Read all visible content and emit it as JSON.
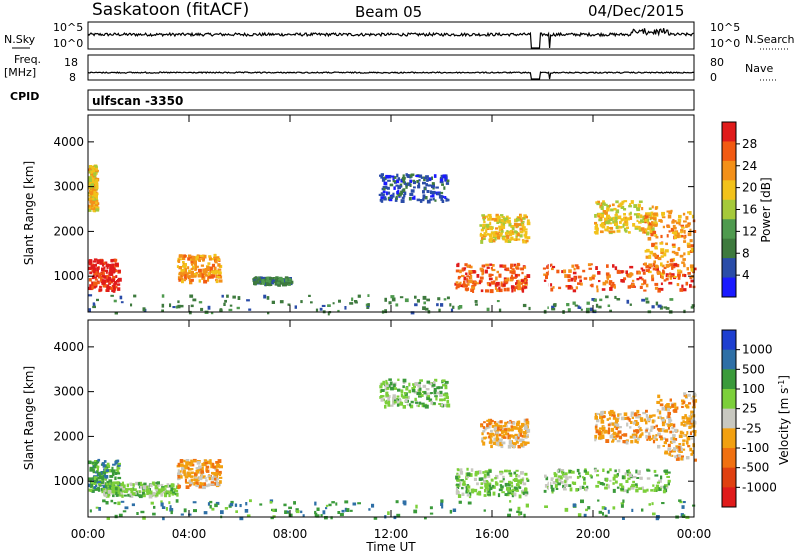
{
  "header": {
    "radar": "Saskatoon (fitACF)",
    "beam": "Beam 05",
    "date": "04/Dec/2015"
  },
  "strip_panels": {
    "noise": {
      "left_label": "N.Sky",
      "right_label": "N.Search",
      "left_ticks": [
        "10^5",
        "10^0"
      ],
      "right_ticks": [
        "10^5",
        "10^0"
      ]
    },
    "freq": {
      "left_label_1": "Freq.",
      "left_label_2": "[MHz]",
      "right_label": "Nave",
      "left_ticks": [
        "18",
        "8"
      ],
      "right_ticks": [
        "80",
        "0"
      ]
    },
    "cpid": {
      "label": "CPID",
      "value": "ulfscan -3350"
    }
  },
  "x_axis": {
    "title": "Time UT",
    "ticks": [
      "00:00",
      "04:00",
      "08:00",
      "12:00",
      "16:00",
      "20:00",
      "00:00"
    ]
  },
  "colors": {
    "power": [
      "#1a1aff",
      "#2a4ca8",
      "#3e7a3e",
      "#4f9a4f",
      "#a5c93a",
      "#f2c21b",
      "#f39019",
      "#f25a12",
      "#e01b1b"
    ],
    "velocity": [
      "#1e3fd0",
      "#2e6fa6",
      "#3a9a3a",
      "#7ccf3a",
      "#c8c8c0",
      "#f2a010",
      "#f07010",
      "#e04010",
      "#e01b1b"
    ]
  },
  "chart_data": [
    {
      "type": "heatmap",
      "name": "power",
      "ylabel": "Slant Range [km]",
      "yticks": [
        "1000",
        "2000",
        "3000",
        "4000"
      ],
      "ylim": [
        200,
        4600
      ],
      "xlim": [
        0,
        24
      ],
      "colorbar": {
        "title": "Power [dB]",
        "ticks": [
          "4",
          "8",
          "12",
          "16",
          "20",
          "24",
          "28"
        ]
      },
      "data_gap_hours": [
        [
          17.55,
          17.9
        ],
        [
          18.25,
          18.3
        ]
      ],
      "features": [
        {
          "x": [
            0.0,
            1.2
          ],
          "y": [
            700,
            1400
          ],
          "level": 9
        },
        {
          "x": [
            0.0,
            0.3
          ],
          "y": [
            2500,
            3500
          ],
          "level": 6
        },
        {
          "x": [
            3.5,
            5.2
          ],
          "y": [
            900,
            1500
          ],
          "level": 7
        },
        {
          "x": [
            6.5,
            8.0
          ],
          "y": [
            850,
            1000
          ],
          "level": 3
        },
        {
          "x": [
            11.5,
            14.2
          ],
          "y": [
            2700,
            3300
          ],
          "level": 2
        },
        {
          "x": [
            14.5,
            17.4
          ],
          "y": [
            700,
            1300
          ],
          "level": 8
        },
        {
          "x": [
            15.5,
            17.4
          ],
          "y": [
            1800,
            2400
          ],
          "level": 6
        },
        {
          "x": [
            18.0,
            24.0
          ],
          "y": [
            700,
            1300
          ],
          "level": 8
        },
        {
          "x": [
            20.0,
            22.5
          ],
          "y": [
            2000,
            2700
          ],
          "level": 6
        },
        {
          "x": [
            22.0,
            24.0
          ],
          "y": [
            1000,
            2500
          ],
          "level": 7
        },
        {
          "x": [
            0.0,
            24.0
          ],
          "y": [
            200,
            600
          ],
          "level": 3
        }
      ]
    },
    {
      "type": "heatmap",
      "name": "velocity",
      "ylabel": "Slant Range [km]",
      "yticks": [
        "1000",
        "2000",
        "3000",
        "4000"
      ],
      "ylim": [
        200,
        4600
      ],
      "xlim": [
        0,
        24
      ],
      "colorbar": {
        "title": "Velocity [m s^-1]",
        "ticks": [
          "1000",
          "500",
          "100",
          "25",
          "-25",
          "-100",
          "-500",
          "-1000"
        ]
      },
      "data_gap_hours": [
        [
          17.55,
          17.9
        ],
        [
          18.25,
          18.3
        ]
      ],
      "features": [
        {
          "x": [
            0.0,
            1.2
          ],
          "y": [
            800,
            1500
          ],
          "level": 3
        },
        {
          "x": [
            0.5,
            3.5
          ],
          "y": [
            700,
            1000
          ],
          "level": 4
        },
        {
          "x": [
            3.5,
            5.2
          ],
          "y": [
            900,
            1500
          ],
          "level": 6
        },
        {
          "x": [
            11.5,
            14.2
          ],
          "y": [
            2700,
            3300
          ],
          "level": 4
        },
        {
          "x": [
            14.5,
            17.4
          ],
          "y": [
            700,
            1300
          ],
          "level": 4
        },
        {
          "x": [
            15.5,
            17.4
          ],
          "y": [
            1800,
            2400
          ],
          "level": 6
        },
        {
          "x": [
            18.0,
            23.0
          ],
          "y": [
            800,
            1300
          ],
          "level": 4
        },
        {
          "x": [
            20.0,
            22.5
          ],
          "y": [
            1900,
            2600
          ],
          "level": 6
        },
        {
          "x": [
            22.5,
            24.0
          ],
          "y": [
            1500,
            3000
          ],
          "level": 6
        },
        {
          "x": [
            0.0,
            24.0
          ],
          "y": [
            200,
            600
          ],
          "level": 3
        }
      ]
    }
  ]
}
